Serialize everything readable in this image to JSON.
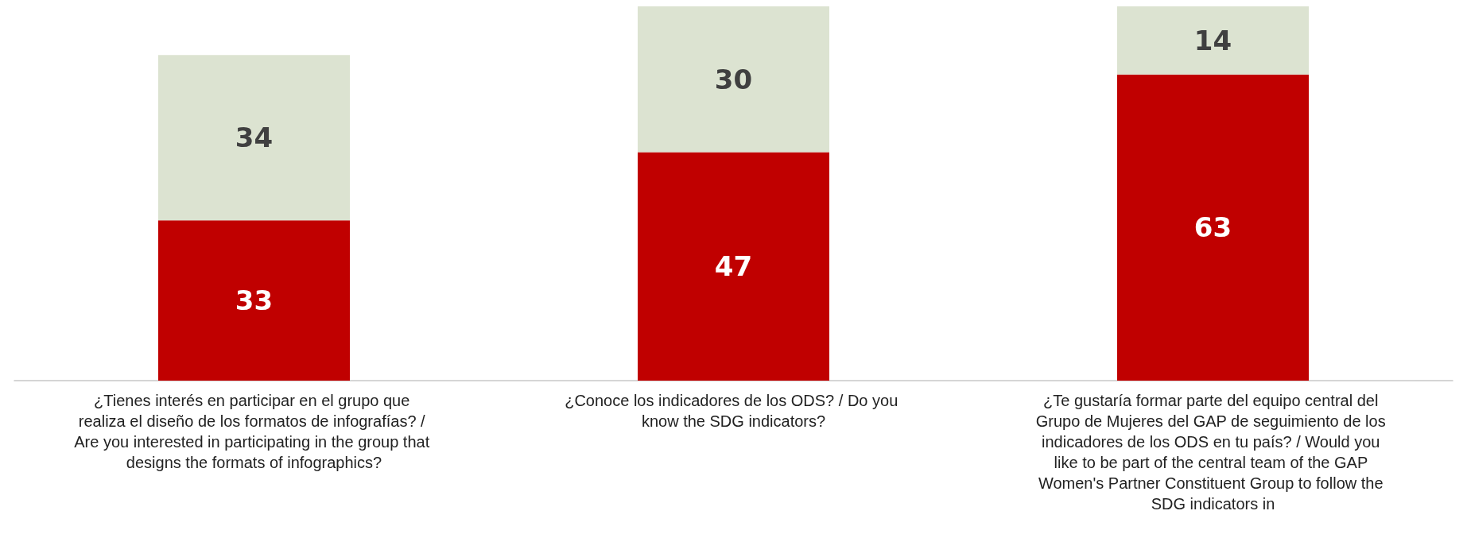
{
  "chart_data": {
    "type": "bar",
    "stacked": true,
    "data_labels": true,
    "categories": [
      "¿Tienes interés en participar en el grupo que realiza el diseño de los formatos de infografías? / Are you interested in participating in the group that designs the formats of infographics?",
      "¿Conoce los indicadores de los ODS? / Do you know the SDG indicators?",
      "¿Te gustaría formar parte del equipo central del Grupo de Mujeres del GAP de seguimiento de los indicadores de los ODS en tu país? / Would you like to be part of the central team of the GAP Women's Partner Constituent Group to follow the SDG indicators in"
    ],
    "series": [
      {
        "color": "#c00000",
        "values": [
          33,
          47,
          63
        ]
      },
      {
        "color": "#dce3d1",
        "values": [
          34,
          30,
          14
        ]
      }
    ]
  }
}
